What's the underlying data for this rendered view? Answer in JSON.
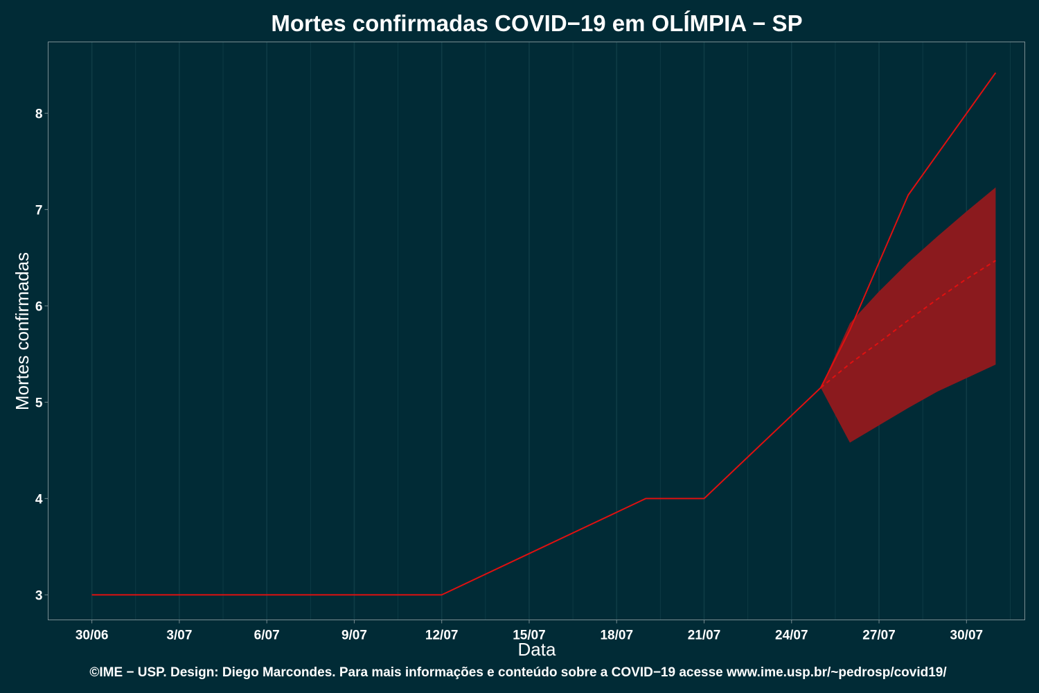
{
  "chart_data": {
    "type": "line",
    "title": "Mortes confirmadas COVID−19 em OLÍMPIA − SP",
    "xlabel": "Data",
    "ylabel": "Mortes confirmadas",
    "caption": "©IME − USP. Design: Diego Marcondes. Para mais informações e conteúdo sobre a COVID−19 acesse www.ime.usp.br/~pedrosp/covid19/",
    "x_ticks": [
      "30/06",
      "3/07",
      "6/07",
      "9/07",
      "12/07",
      "15/07",
      "18/07",
      "21/07",
      "24/07",
      "27/07",
      "30/07"
    ],
    "x_tick_days": [
      0,
      3,
      6,
      9,
      12,
      15,
      18,
      21,
      24,
      27,
      30
    ],
    "xlim": [
      -1.5,
      32
    ],
    "y_ticks": [
      3,
      4,
      5,
      6,
      7,
      8
    ],
    "ylim": [
      2.74,
      8.74
    ],
    "grid": true,
    "colors": {
      "background": "#012b36",
      "line": "#e01010",
      "band": "#8b1a1e",
      "grid": "#0f3c46",
      "frame": "#7a8d92"
    },
    "series": [
      {
        "style": "solid",
        "points": [
          {
            "day": 0,
            "value": 3
          },
          {
            "day": 12,
            "value": 3
          },
          {
            "day": 19,
            "value": 4
          },
          {
            "day": 21,
            "value": 4
          },
          {
            "day": 25,
            "value": 5.15
          },
          {
            "day": 26,
            "value": 5.75
          },
          {
            "day": 28,
            "value": 7.15
          },
          {
            "day": 31,
            "value": 8.42
          }
        ]
      },
      {
        "style": "dashed",
        "points": [
          {
            "day": 25,
            "value": 5.15
          },
          {
            "day": 26,
            "value": 5.4
          },
          {
            "day": 27,
            "value": 5.62
          },
          {
            "day": 28,
            "value": 5.85
          },
          {
            "day": 29,
            "value": 6.07
          },
          {
            "day": 30,
            "value": 6.28
          },
          {
            "day": 31,
            "value": 6.47
          }
        ]
      }
    ],
    "band": {
      "upper": [
        {
          "day": 25,
          "value": 5.15
        },
        {
          "day": 26,
          "value": 5.82
        },
        {
          "day": 27,
          "value": 6.15
        },
        {
          "day": 28,
          "value": 6.45
        },
        {
          "day": 29,
          "value": 6.72
        },
        {
          "day": 30,
          "value": 6.98
        },
        {
          "day": 31,
          "value": 7.23
        }
      ],
      "lower": [
        {
          "day": 25,
          "value": 5.15
        },
        {
          "day": 26,
          "value": 4.58
        },
        {
          "day": 27,
          "value": 4.76
        },
        {
          "day": 28,
          "value": 4.94
        },
        {
          "day": 29,
          "value": 5.11
        },
        {
          "day": 30,
          "value": 5.25
        },
        {
          "day": 31,
          "value": 5.39
        }
      ]
    }
  }
}
